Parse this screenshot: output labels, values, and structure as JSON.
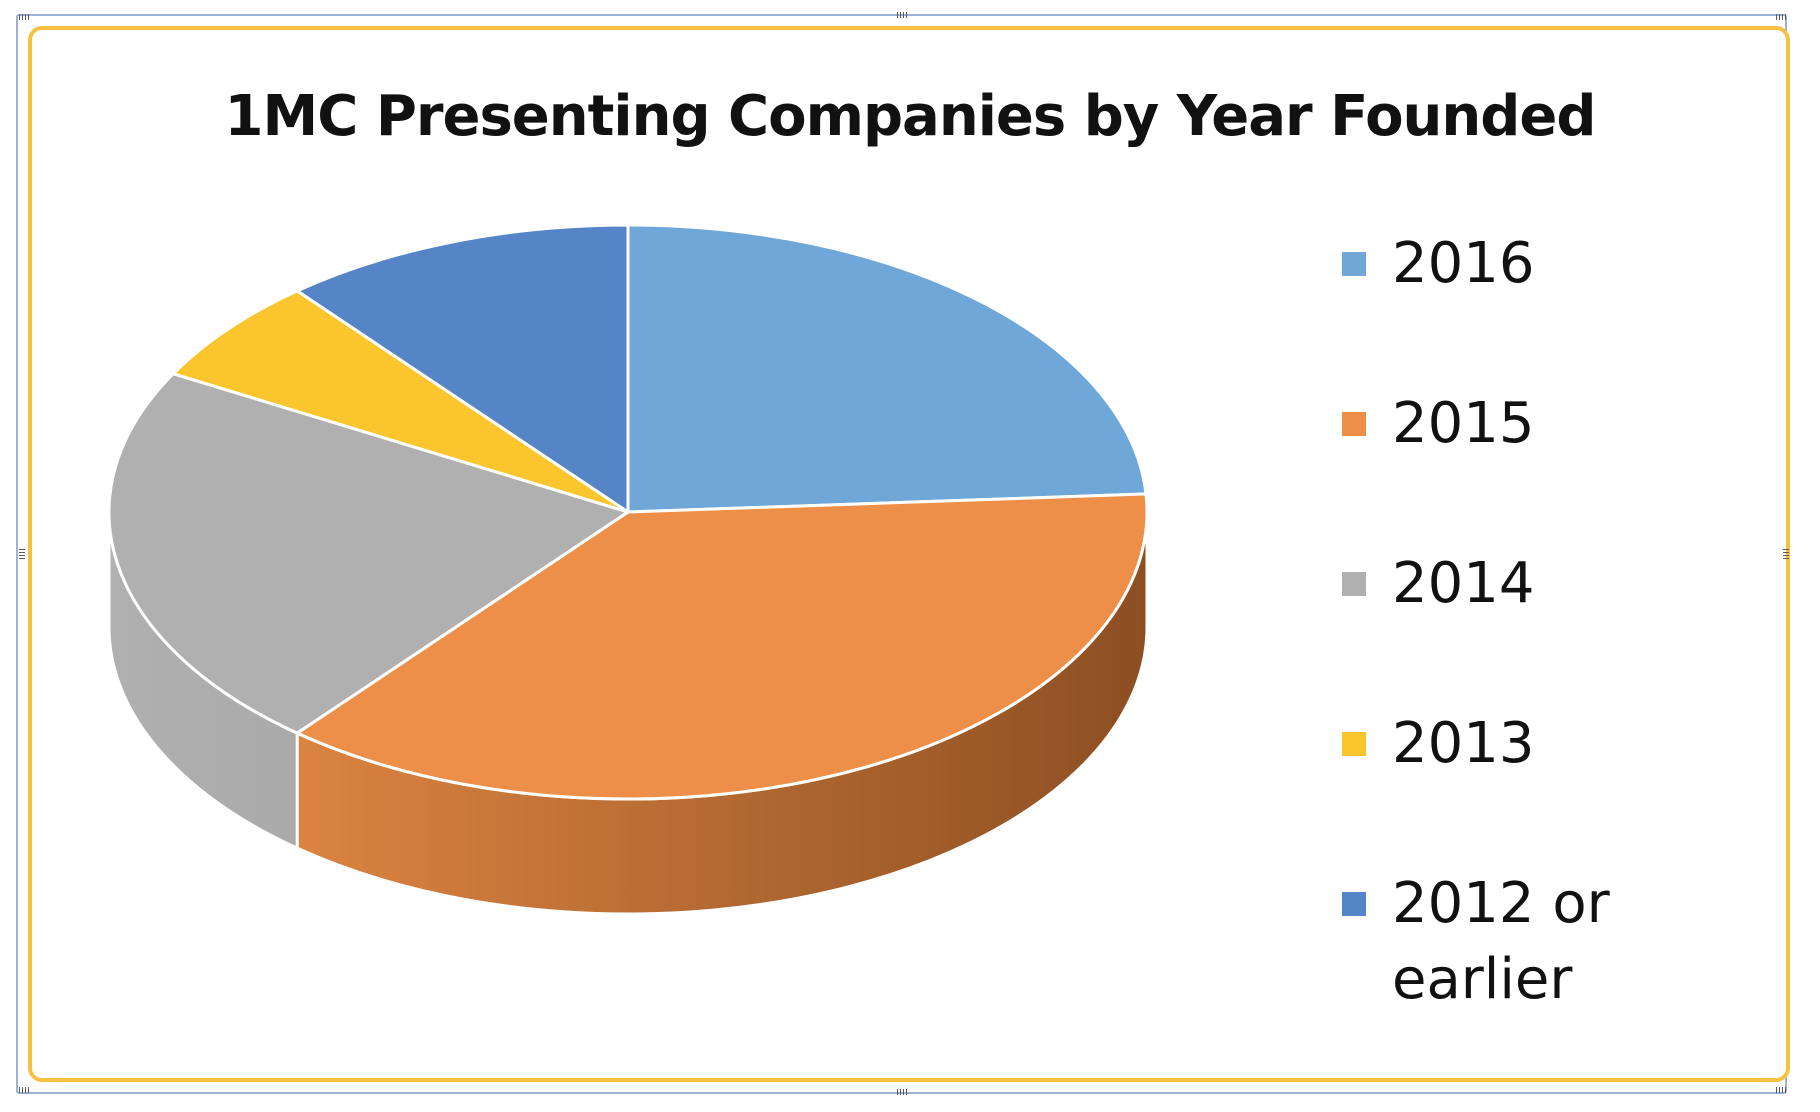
{
  "chart_data": {
    "type": "pie",
    "title": "1MC Presenting Companies by Year Founded",
    "categories": [
      "2016",
      "2015",
      "2014",
      "2013",
      "2012 or earlier"
    ],
    "values": [
      24,
      37,
      22,
      6,
      11
    ],
    "unit": "%",
    "colors": [
      "#6fa8d8",
      "#ed8f48",
      "#b0b0b0",
      "#fbc52e",
      "#5685c7"
    ],
    "side_colors": [
      "#4a7aa6",
      "#8c4f22",
      "#8e8e8e",
      "#c7951a",
      "#3d64a0"
    ],
    "legend": "right",
    "style": "3d"
  }
}
